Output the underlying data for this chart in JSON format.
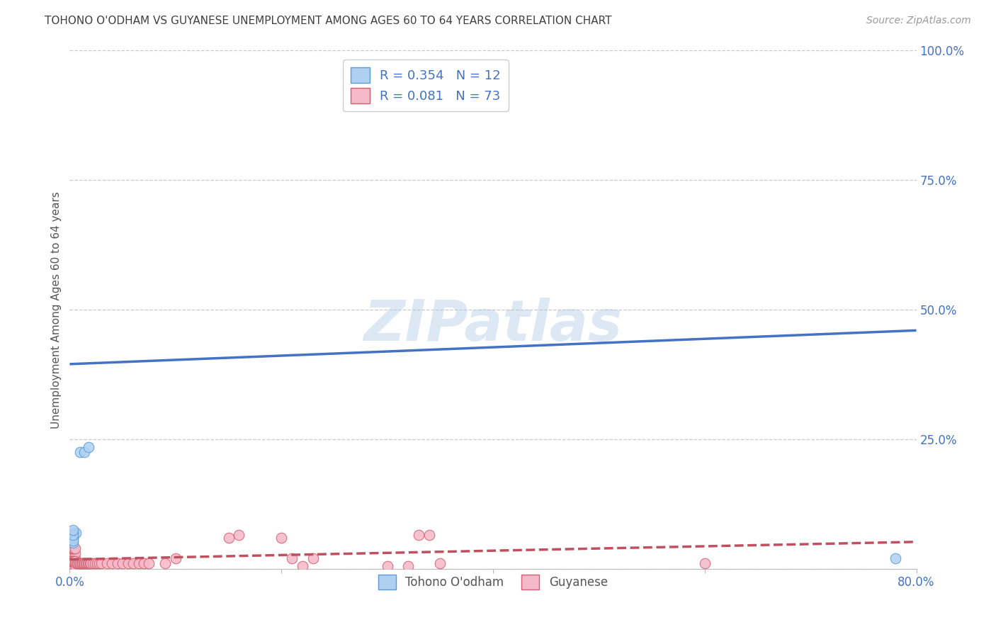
{
  "title": "TOHONO O'ODHAM VS GUYANESE UNEMPLOYMENT AMONG AGES 60 TO 64 YEARS CORRELATION CHART",
  "source": "Source: ZipAtlas.com",
  "ylabel": "Unemployment Among Ages 60 to 64 years",
  "watermark": "ZIPatlas",
  "xlim": [
    0.0,
    0.8
  ],
  "ylim": [
    0.0,
    1.0
  ],
  "xticks": [
    0.0,
    0.2,
    0.4,
    0.6,
    0.8
  ],
  "yticks": [
    0.0,
    0.25,
    0.5,
    0.75,
    1.0
  ],
  "ytick_labels": [
    "",
    "25.0%",
    "50.0%",
    "75.0%",
    "100.0%"
  ],
  "xtick_labels": [
    "0.0%",
    "",
    "",
    "",
    "80.0%"
  ],
  "series": [
    {
      "name": "Tohono O'odham",
      "color": "#afd0f0",
      "edge_color": "#5b9bd5",
      "R": 0.354,
      "N": 12,
      "line_color": "#4472c4",
      "line_style": "solid",
      "points_x": [
        0.003,
        0.006,
        0.01,
        0.014,
        0.018,
        0.003,
        0.003,
        0.003,
        0.003,
        0.003,
        0.003,
        0.78
      ],
      "points_y": [
        0.06,
        0.07,
        0.225,
        0.225,
        0.235,
        0.05,
        0.06,
        0.07,
        0.055,
        0.065,
        0.075,
        0.02
      ],
      "trend_x": [
        0.0,
        0.8
      ],
      "trend_y": [
        0.395,
        0.46
      ]
    },
    {
      "name": "Guyanese",
      "color": "#f5b8c8",
      "edge_color": "#d06070",
      "R": 0.081,
      "N": 73,
      "line_color": "#c05060",
      "line_style": "dashed",
      "points_x": [
        0.001,
        0.002,
        0.003,
        0.004,
        0.005,
        0.001,
        0.002,
        0.003,
        0.004,
        0.005,
        0.001,
        0.002,
        0.003,
        0.004,
        0.005,
        0.001,
        0.002,
        0.003,
        0.004,
        0.005,
        0.001,
        0.002,
        0.003,
        0.004,
        0.005,
        0.001,
        0.002,
        0.003,
        0.004,
        0.005,
        0.006,
        0.007,
        0.008,
        0.009,
        0.01,
        0.011,
        0.012,
        0.013,
        0.014,
        0.015,
        0.016,
        0.017,
        0.018,
        0.019,
        0.02,
        0.022,
        0.024,
        0.026,
        0.028,
        0.03,
        0.035,
        0.04,
        0.045,
        0.05,
        0.055,
        0.06,
        0.065,
        0.07,
        0.075,
        0.09,
        0.1,
        0.15,
        0.16,
        0.2,
        0.21,
        0.22,
        0.23,
        0.3,
        0.32,
        0.33,
        0.34,
        0.35,
        0.6
      ],
      "points_y": [
        0.01,
        0.01,
        0.01,
        0.01,
        0.01,
        0.02,
        0.02,
        0.02,
        0.02,
        0.02,
        0.03,
        0.03,
        0.03,
        0.03,
        0.03,
        0.04,
        0.04,
        0.04,
        0.04,
        0.04,
        0.005,
        0.005,
        0.005,
        0.005,
        0.005,
        0.015,
        0.015,
        0.015,
        0.015,
        0.015,
        0.01,
        0.01,
        0.01,
        0.01,
        0.01,
        0.01,
        0.01,
        0.01,
        0.01,
        0.01,
        0.01,
        0.01,
        0.01,
        0.01,
        0.01,
        0.01,
        0.01,
        0.01,
        0.01,
        0.01,
        0.01,
        0.01,
        0.01,
        0.01,
        0.01,
        0.01,
        0.01,
        0.01,
        0.01,
        0.01,
        0.02,
        0.06,
        0.065,
        0.06,
        0.02,
        0.005,
        0.02,
        0.005,
        0.005,
        0.065,
        0.065,
        0.01,
        0.01
      ],
      "trend_x": [
        0.0,
        0.8
      ],
      "trend_y": [
        0.018,
        0.052
      ]
    }
  ],
  "background_color": "#ffffff",
  "grid_color": "#c8c8c8",
  "title_color": "#404040",
  "source_color": "#999999",
  "axis_label_color": "#555555",
  "tick_color_blue": "#4472c4",
  "watermark_color": "#dde8f5",
  "marker_size": 110
}
